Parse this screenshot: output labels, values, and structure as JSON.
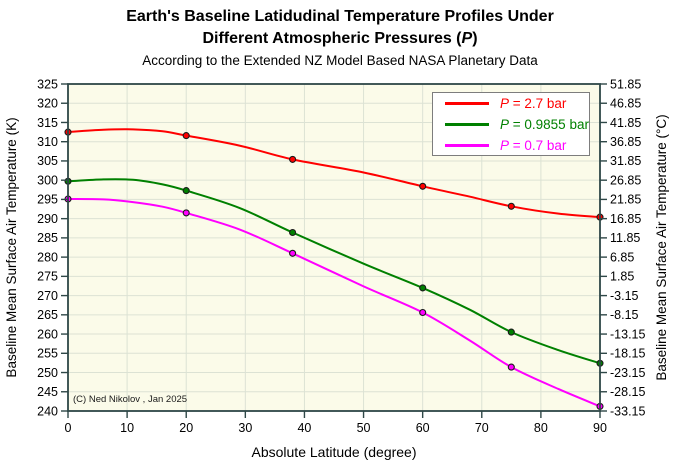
{
  "chart_data": {
    "type": "line",
    "title_line1": "Earth's Baseline Latidudinal Temperature Profiles Under",
    "title_line2_pre": "Different Atmospheric Pressures (",
    "title_line2_var": "P",
    "title_line2_post": ")",
    "subtitle": "According to the Extended NZ Model Based NASA Planetary Data",
    "xlabel": "Absolute Latitude (degree)",
    "ylabel_left": "Baseline Mean Surface Air Temperature (K)",
    "ylabel_right": "Baseline Mean Surface Air Temperature (°C)",
    "xlim": [
      0,
      90
    ],
    "ylim_K": [
      240,
      325
    ],
    "x_ticks": [
      0,
      10,
      20,
      30,
      40,
      50,
      60,
      70,
      80,
      90
    ],
    "y_ticks_K": [
      240,
      245,
      250,
      255,
      260,
      265,
      270,
      275,
      280,
      285,
      290,
      295,
      300,
      305,
      310,
      315,
      320,
      325
    ],
    "y_tick_labels_C": [
      "-33.15",
      "-28.15",
      "-23.15",
      "-18.15",
      "-13.15",
      "-8.15",
      "-3.15",
      "1.85",
      "6.85",
      "11.85",
      "16.85",
      "21.85",
      "26.85",
      "31.85",
      "36.85",
      "41.85",
      "46.85",
      "51.85"
    ],
    "grid": true,
    "legend": {
      "position": "top-right",
      "items": [
        {
          "var": "P",
          "rest": " = 2.7 bar",
          "color": "#FF0000"
        },
        {
          "var": "P",
          "rest": " = 0.9855 bar",
          "color": "#008000"
        },
        {
          "var": "P",
          "rest": " = 0.7 bar",
          "color": "#FF00FF"
        }
      ]
    },
    "series": [
      {
        "id": "p-2.7-bar",
        "label": "P = 2.7 bar",
        "color": "#FF0000",
        "marker_points": [
          [
            0,
            312.5
          ],
          [
            20,
            311.6
          ],
          [
            38,
            305.4
          ],
          [
            60,
            298.4
          ],
          [
            75,
            293.2
          ],
          [
            90,
            290.4
          ]
        ],
        "curve_points": [
          [
            0,
            312.5
          ],
          [
            6,
            313.1
          ],
          [
            11,
            313.2
          ],
          [
            16,
            312.7
          ],
          [
            20,
            311.6
          ],
          [
            29,
            309.0
          ],
          [
            38,
            305.4
          ],
          [
            50,
            302.0
          ],
          [
            60,
            298.4
          ],
          [
            68,
            295.7
          ],
          [
            75,
            293.2
          ],
          [
            83,
            291.3
          ],
          [
            90,
            290.4
          ]
        ]
      },
      {
        "id": "p-0.9855-bar",
        "label": "P = 0.9855 bar",
        "color": "#008000",
        "marker_points": [
          [
            0,
            299.7
          ],
          [
            20,
            297.3
          ],
          [
            38,
            286.4
          ],
          [
            60,
            272.0
          ],
          [
            75,
            260.5
          ],
          [
            90,
            252.4
          ]
        ],
        "curve_points": [
          [
            0,
            299.7
          ],
          [
            6,
            300.2
          ],
          [
            11,
            300.1
          ],
          [
            16,
            298.9
          ],
          [
            20,
            297.3
          ],
          [
            29,
            292.8
          ],
          [
            38,
            286.4
          ],
          [
            50,
            278.3
          ],
          [
            60,
            272.0
          ],
          [
            68,
            266.3
          ],
          [
            75,
            260.5
          ],
          [
            83,
            255.8
          ],
          [
            90,
            252.4
          ]
        ]
      },
      {
        "id": "p-0.7-bar",
        "label": "P = 0.7 bar",
        "color": "#FF00FF",
        "marker_points": [
          [
            0,
            295.1
          ],
          [
            20,
            291.5
          ],
          [
            38,
            281.0
          ],
          [
            60,
            265.6
          ],
          [
            75,
            251.4
          ],
          [
            90,
            241.2
          ]
        ],
        "curve_points": [
          [
            0,
            295.1
          ],
          [
            6,
            295.0
          ],
          [
            11,
            294.3
          ],
          [
            16,
            293.1
          ],
          [
            20,
            291.5
          ],
          [
            29,
            287.2
          ],
          [
            38,
            281.0
          ],
          [
            50,
            272.4
          ],
          [
            60,
            265.6
          ],
          [
            68,
            258.3
          ],
          [
            75,
            251.4
          ],
          [
            83,
            245.7
          ],
          [
            90,
            241.2
          ]
        ]
      }
    ],
    "annotation": "(C) Ned Nikolov , Jan 2025",
    "colors": {
      "plot_bg": "#FBFBE9",
      "grid": "#DCE2D4",
      "frame": "#2E4747",
      "tick": "#2E4747",
      "text": "#000000"
    }
  }
}
